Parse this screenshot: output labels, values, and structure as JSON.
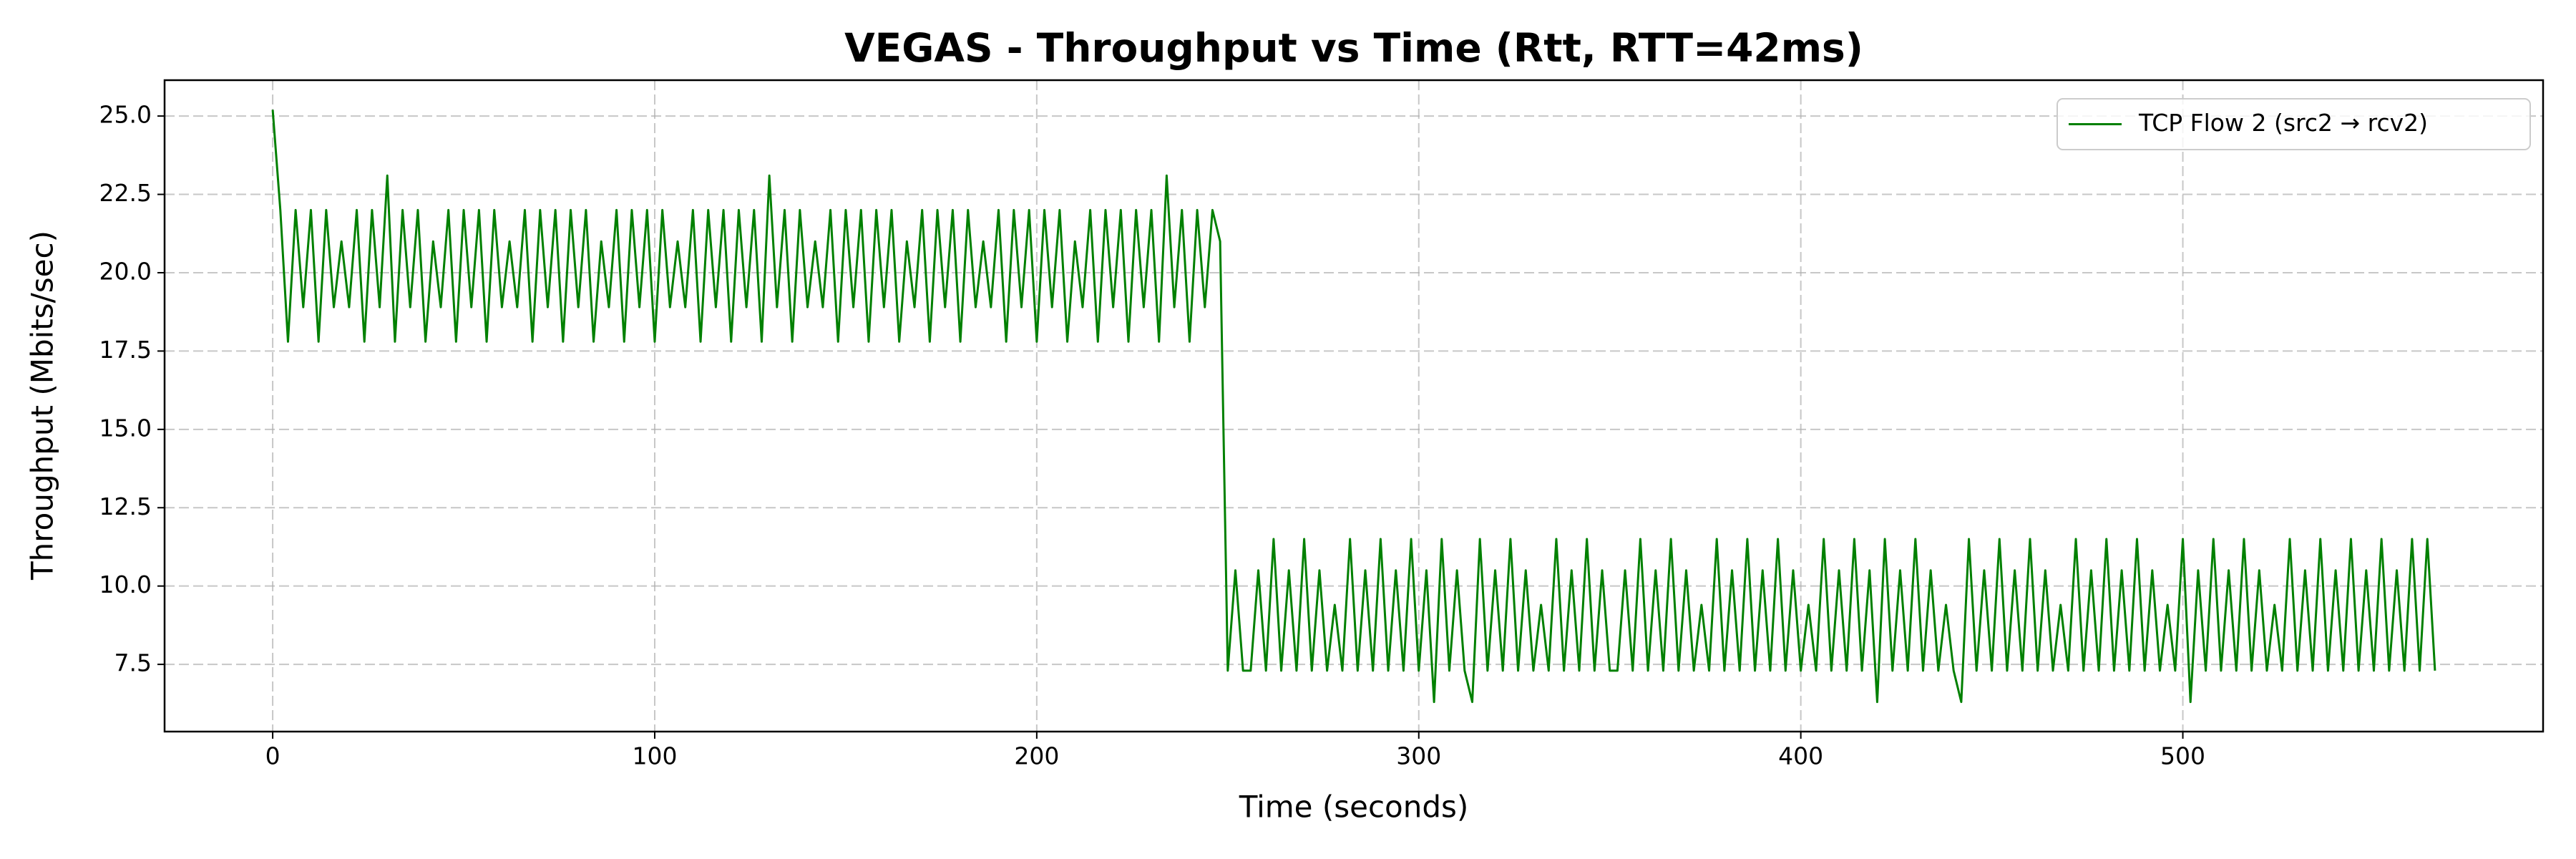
{
  "chart_data": {
    "type": "line",
    "title": "VEGAS - Throughput vs Time (Rtt, RTT=42ms)",
    "x_label": "Time (seconds)",
    "y_label": "Throughput (Mbits/sec)",
    "xlim": [
      -28.3,
      594.3
    ],
    "ylim": [
      5.355,
      26.145
    ],
    "xticks": [
      0,
      100,
      200,
      300,
      400,
      500
    ],
    "yticks": [
      7.5,
      {
        "value": 10,
        "label": "10.0"
      },
      12.5,
      {
        "value": 15,
        "label": "15.0"
      },
      17.5,
      {
        "value": 20,
        "label": "20.0"
      },
      22.5,
      {
        "value": 25,
        "label": "25.0"
      }
    ],
    "grid": true,
    "legend": "upper right",
    "x": [
      0,
      2,
      4,
      6,
      8,
      10,
      12,
      14,
      16,
      18,
      20,
      22,
      24,
      26,
      28,
      30,
      32,
      34,
      36,
      38,
      40,
      42,
      44,
      46,
      48,
      50,
      52,
      54,
      56,
      58,
      60,
      62,
      64,
      66,
      68,
      70,
      72,
      74,
      76,
      78,
      80,
      82,
      84,
      86,
      88,
      90,
      92,
      94,
      96,
      98,
      100,
      102,
      104,
      106,
      108,
      110,
      112,
      114,
      116,
      118,
      120,
      122,
      124,
      126,
      128,
      130,
      132,
      134,
      136,
      138,
      140,
      142,
      144,
      146,
      148,
      150,
      152,
      154,
      156,
      158,
      160,
      162,
      164,
      166,
      168,
      170,
      172,
      174,
      176,
      178,
      180,
      182,
      184,
      186,
      188,
      190,
      192,
      194,
      196,
      198,
      200,
      202,
      204,
      206,
      208,
      210,
      212,
      214,
      216,
      218,
      220,
      222,
      224,
      226,
      228,
      230,
      232,
      234,
      236,
      238,
      240,
      242,
      244,
      246,
      248,
      250,
      252,
      254,
      256,
      258,
      260,
      262,
      264,
      266,
      268,
      270,
      272,
      274,
      276,
      278,
      280,
      282,
      284,
      286,
      288,
      290,
      292,
      294,
      296,
      298,
      300,
      302,
      304,
      306,
      308,
      310,
      312,
      314,
      316,
      318,
      320,
      322,
      324,
      326,
      328,
      330,
      332,
      334,
      336,
      338,
      340,
      342,
      344,
      346,
      348,
      350,
      352,
      354,
      356,
      358,
      360,
      362,
      364,
      366,
      368,
      370,
      372,
      374,
      376,
      378,
      380,
      382,
      384,
      386,
      388,
      390,
      392,
      394,
      396,
      398,
      400,
      402,
      404,
      406,
      408,
      410,
      412,
      414,
      416,
      418,
      420,
      422,
      424,
      426,
      428,
      430,
      432,
      434,
      436,
      438,
      440,
      442,
      444,
      446,
      448,
      450,
      452,
      454,
      456,
      458,
      460,
      462,
      464,
      466,
      468,
      470,
      472,
      474,
      476,
      478,
      480,
      482,
      484,
      486,
      488,
      490,
      492,
      494,
      496,
      498,
      500,
      502,
      504,
      506,
      508,
      510,
      512,
      514,
      516,
      518,
      520,
      522,
      524,
      526,
      528,
      530,
      532,
      534,
      536,
      538,
      540,
      542,
      544,
      546,
      548,
      550,
      552,
      554,
      556,
      558,
      560,
      562,
      564,
      566
    ],
    "series": [
      {
        "name": "TCP Flow 2 (src2 → rcv2)",
        "color": "#008000",
        "values": [
          25.2,
          22.0,
          17.8,
          22.0,
          18.9,
          22.0,
          17.8,
          22.0,
          18.9,
          21.0,
          18.9,
          22.0,
          17.8,
          22.0,
          18.9,
          23.1,
          17.8,
          22.0,
          18.9,
          22.0,
          17.8,
          21.0,
          18.9,
          22.0,
          17.8,
          22.0,
          18.9,
          22.0,
          17.8,
          22.0,
          18.9,
          21.0,
          18.9,
          22.0,
          17.8,
          22.0,
          18.9,
          22.0,
          17.8,
          22.0,
          18.9,
          22.0,
          17.8,
          21.0,
          18.9,
          22.0,
          17.8,
          22.0,
          18.9,
          22.0,
          17.8,
          22.0,
          18.9,
          21.0,
          18.9,
          22.0,
          17.8,
          22.0,
          18.9,
          22.0,
          17.8,
          22.0,
          18.9,
          22.0,
          17.8,
          23.1,
          18.9,
          22.0,
          17.8,
          22.0,
          18.9,
          21.0,
          18.9,
          22.0,
          17.8,
          22.0,
          18.9,
          22.0,
          17.8,
          22.0,
          18.9,
          22.0,
          17.8,
          21.0,
          18.9,
          22.0,
          17.8,
          22.0,
          18.9,
          22.0,
          17.8,
          22.0,
          18.9,
          21.0,
          18.9,
          22.0,
          17.8,
          22.0,
          18.9,
          22.0,
          17.8,
          22.0,
          18.9,
          22.0,
          17.8,
          21.0,
          18.9,
          22.0,
          17.8,
          22.0,
          18.9,
          22.0,
          17.8,
          22.0,
          18.9,
          22.0,
          17.8,
          23.1,
          18.9,
          22.0,
          17.8,
          22.0,
          18.9,
          22.0,
          21.0,
          7.3,
          10.5,
          7.3,
          7.3,
          10.5,
          7.3,
          11.5,
          7.3,
          10.5,
          7.3,
          11.5,
          7.3,
          10.5,
          7.3,
          9.4,
          7.3,
          11.5,
          7.3,
          10.5,
          7.3,
          11.5,
          7.3,
          10.5,
          7.3,
          11.5,
          7.3,
          10.5,
          6.3,
          11.5,
          7.3,
          10.5,
          7.3,
          6.3,
          11.5,
          7.3,
          10.5,
          7.3,
          11.5,
          7.3,
          10.5,
          7.3,
          9.4,
          7.3,
          11.5,
          7.3,
          10.5,
          7.3,
          11.5,
          7.3,
          10.5,
          7.3,
          7.3,
          10.5,
          7.3,
          11.5,
          7.3,
          10.5,
          7.3,
          11.5,
          7.3,
          10.5,
          7.3,
          9.4,
          7.3,
          11.5,
          7.3,
          10.5,
          7.3,
          11.5,
          7.3,
          10.5,
          7.3,
          11.5,
          7.3,
          10.5,
          7.3,
          9.4,
          7.3,
          11.5,
          7.3,
          10.5,
          7.3,
          11.5,
          7.3,
          10.5,
          6.3,
          11.5,
          7.3,
          10.5,
          7.3,
          11.5,
          7.3,
          10.5,
          7.3,
          9.4,
          7.3,
          6.3,
          11.5,
          7.3,
          10.5,
          7.3,
          11.5,
          7.3,
          10.5,
          7.3,
          11.5,
          7.3,
          10.5,
          7.3,
          9.4,
          7.3,
          11.5,
          7.3,
          10.5,
          7.3,
          11.5,
          7.3,
          10.5,
          7.3,
          11.5,
          7.3,
          10.5,
          7.3,
          9.4,
          7.3,
          11.5,
          6.3,
          10.5,
          7.3,
          11.5,
          7.3,
          10.5,
          7.3,
          11.5,
          7.3,
          10.5,
          7.3,
          9.4,
          7.3,
          11.5,
          7.3,
          10.5,
          7.3,
          11.5,
          7.3,
          10.5,
          7.3,
          11.5,
          7.3,
          10.5,
          7.3,
          11.5,
          7.3,
          10.5,
          7.3,
          11.5,
          7.3,
          11.5,
          7.3
        ]
      }
    ]
  }
}
